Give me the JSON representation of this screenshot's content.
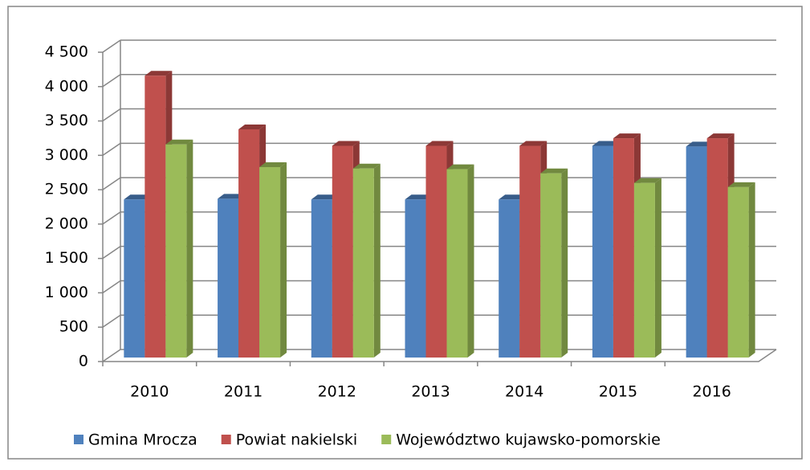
{
  "chart_data": {
    "type": "bar3d",
    "categories": [
      "2010",
      "2011",
      "2012",
      "2013",
      "2014",
      "2015",
      "2016"
    ],
    "series": [
      {
        "name": "Gmina Mrocza",
        "color": "#4f81bd",
        "side": "#385d8a",
        "values": [
          2300,
          2310,
          2300,
          2300,
          2300,
          3080,
          3070
        ]
      },
      {
        "name": "Powiat nakielski",
        "color": "#c0504d",
        "side": "#8c3836",
        "values": [
          4100,
          3320,
          3080,
          3080,
          3080,
          3190,
          3190
        ]
      },
      {
        "name": "Województwo kujawsko-pomorskie",
        "color": "#9bbb59",
        "side": "#71893f",
        "values": [
          3100,
          2770,
          2750,
          2740,
          2680,
          2540,
          2480
        ]
      }
    ],
    "ylim": [
      0,
      4500
    ],
    "yticks": [
      0,
      500,
      {
        "value": 1000,
        "label": "1 000"
      },
      {
        "value": 1500,
        "label": "1 500"
      },
      {
        "value": 2000,
        "label": "2 000"
      },
      {
        "value": 2500,
        "label": "2 500"
      },
      {
        "value": 3000,
        "label": "3 000"
      },
      {
        "value": 3500,
        "label": "3 500"
      },
      {
        "value": 4000,
        "label": "4 000"
      },
      {
        "value": 4500,
        "label": "4 500"
      }
    ],
    "grid": true,
    "legend": "bottom"
  }
}
